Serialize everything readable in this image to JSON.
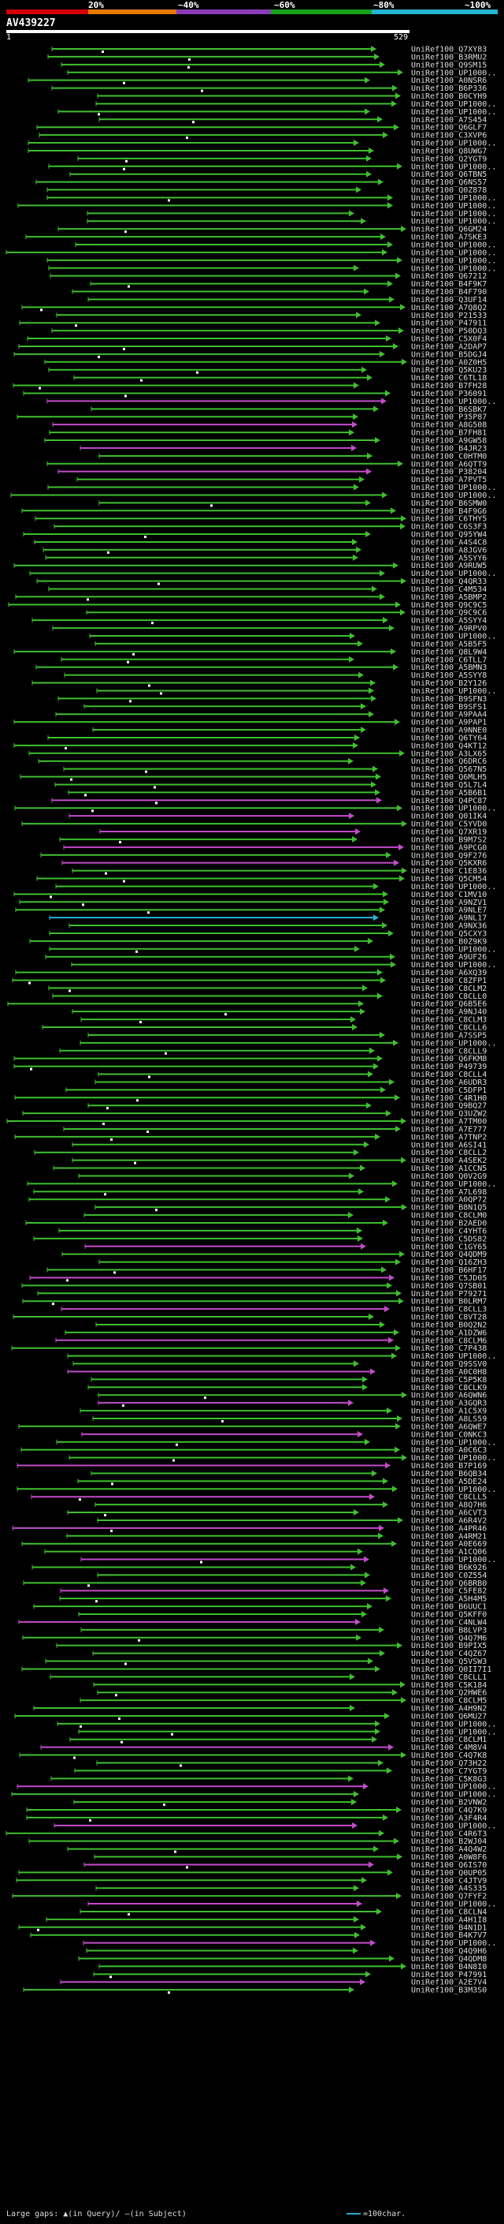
{
  "legend": {
    "labels": [
      "20%",
      "~40%",
      "~60%",
      "~80%",
      "~100%"
    ],
    "colors": [
      "#d40000",
      "#e67a00",
      "#8b3bb8",
      "#19a019",
      "#22b5d0"
    ]
  },
  "query": {
    "name": "AV439227",
    "start": "1",
    "end": "529"
  },
  "hits": [
    "UniRef100_Q7XY83",
    "UniRef100_B3RMU2",
    "UniRef100_Q9SM15",
    "UniRef100_UP1000..",
    "UniRef100_A0NSR6",
    "UniRef100_B6P336",
    "UniRef100_B0CYH9",
    "UniRef100_UP1000..",
    "UniRef100_UP1000..",
    "UniRef100_A7S454",
    "UniRef100_Q6GLF7",
    "UniRef100_C3XVP6",
    "UniRef100_UP1000..",
    "UniRef100_Q8UWG7",
    "UniRef100_Q2YGT9",
    "UniRef100_UP1000..",
    "UniRef100_Q6TBN5",
    "UniRef100_Q6NS57",
    "UniRef100_Q0Z878",
    "UniRef100_UP1000..",
    "UniRef100_UP1000..",
    "UniRef100_UP1000..",
    "UniRef100_UP1000..",
    "UniRef100_Q6GM24",
    "UniRef100_A7SKE3",
    "UniRef100_UP1000..",
    "UniRef100_UP1000..",
    "UniRef100_UP1000..",
    "UniRef100_UP1000..",
    "UniRef100_Q67212",
    "UniRef100_B4F9K7",
    "UniRef100_B4F790",
    "UniRef100_Q3UF14",
    "UniRef100_A7Q8Q2",
    "UniRef100_P21533",
    "UniRef100_P47911",
    "UniRef100_P50DQ3",
    "UniRef100_C5X0F4",
    "UniRef100_A2DAP7",
    "UniRef100_B5DGJ4",
    "UniRef100_A0Z0H5",
    "UniRef100_Q5KU23",
    "UniRef100_C6TL18",
    "UniRef100_B7FH28",
    "UniRef100_P36091",
    "UniRef100_UP1000..",
    "UniRef100_B6SBK7",
    "UniRef100_P35P87",
    "UniRef100_A8G508",
    "UniRef100_B7FH81",
    "UniRef100_A9GW58",
    "UniRef100_B4JR23",
    "UniRef100_C0HTM0",
    "UniRef100_A6QTT9",
    "UniRef100_P38204",
    "UniRef100_A7PVT5",
    "UniRef100_UP1000..",
    "UniRef100_UP1000..",
    "UniRef100_B6SMW0",
    "UniRef100_B4F9G6",
    "UniRef100_C6THY5",
    "UniRef100_C6S3F3",
    "UniRef100_Q95YW4",
    "UniRef100_A4S4C8",
    "UniRef100_A8JGV6",
    "UniRef100_A5SYY6",
    "UniRef100_A9RUW5",
    "UniRef100_UP1000..",
    "UniRef100_Q4QR33",
    "UniRef100_C4M534",
    "UniRef100_A5BMP2",
    "UniRef100_Q9C9C5",
    "UniRef100_Q9C9C6",
    "UniRef100_A5SYY4",
    "UniRef100_A9RPV0",
    "UniRef100_UP1000..",
    "UniRef100_A5B5F5",
    "UniRef100_Q8L9W4",
    "UniRef100_C6TLL7",
    "UniRef100_A5BMN3",
    "UniRef100_A5SYY8",
    "UniRef100_B2Y126",
    "UniRef100_UP1000..",
    "UniRef100_B9SFN3",
    "UniRef100_B9SFS1",
    "UniRef100_A9PAA4",
    "UniRef100_A9PAP1",
    "UniRef100_A9NNE0",
    "UniRef100_Q6TY64",
    "UniRef100_Q4KT12",
    "UniRef100_A3LX65",
    "UniRef100_Q6DRC6",
    "UniRef100_Q567N5",
    "UniRef100_Q6MLH5",
    "UniRef100_Q5L7L4",
    "UniRef100_A5B6B1",
    "UniRef100_Q4PC87",
    "UniRef100_UP1000..",
    "UniRef100_Q01IK4",
    "UniRef100_C5YVD0",
    "UniRef100_Q7XR19",
    "UniRef100_B9M7S2",
    "UniRef100_A9PCG0",
    "UniRef100_Q9F276",
    "UniRef100_Q5KXR6",
    "UniRef100_C1E836",
    "UniRef100_Q5CM54",
    "UniRef100_UP1000..",
    "UniRef100_C1MV10",
    "UniRef100_A9NZV1",
    "UniRef100_A9NLE7",
    "UniRef100_A9NL17",
    "UniRef100_A9NX36",
    "UniRef100_Q5CXY3",
    "UniRef100_B0Z9K9",
    "UniRef100_UP1000..",
    "UniRef100_A9UF26",
    "UniRef100_UP1000..",
    "UniRef100_A6XQ39",
    "UniRef100_C8ZFP1",
    "UniRef100_C8CLM2",
    "UniRef100_C8CLL0",
    "UniRef100_Q6B5E6",
    "UniRef100_A9NJ40",
    "UniRef100_C8CLM3",
    "UniRef100_C8CLL6",
    "UniRef100_A7SSP5",
    "UniRef100_UP1000..",
    "UniRef100_C8CLL9",
    "UniRef100_Q6FKM8",
    "UniRef100_P49739",
    "UniRef100_C8CLL4",
    "UniRef100_A6UDR3",
    "UniRef100_C5DFP1",
    "UniRef100_C4R1H0",
    "UniRef100_Q9BQ27",
    "UniRef100_Q3UZW2",
    "UniRef100_A7TM00",
    "UniRef100_A7E777",
    "UniRef100_A7TNP2",
    "UniRef100_A6SI41",
    "UniRef100_C8CLL2",
    "UniRef100_A4SEK2",
    "UniRef100_A1CCN5",
    "UniRef100_Q0V2G9",
    "UniRef100_UP1000..",
    "UniRef100_A7L698",
    "UniRef100_A0QP72",
    "UniRef100_B8N1Q5",
    "UniRef100_C8CLM0",
    "UniRef100_B2AED0",
    "UniRef100_C4YHT6",
    "UniRef100_C5DS82",
    "UniRef100_C1GY65",
    "UniRef100_Q4QDM9",
    "UniRef100_Q16ZH3",
    "UniRef100_B6HF17",
    "UniRef100_C5JD05",
    "UniRef100_Q7SB01",
    "UniRef100_P79271",
    "UniRef100_B0LRM7",
    "UniRef100_C8CLL3",
    "UniRef100_C8VT28",
    "UniRef100_B0Q2N2",
    "UniRef100_A1DZW6",
    "UniRef100_C8CLM6",
    "UniRef100_C7P438",
    "UniRef100_UP1000..",
    "UniRef100_Q9SSV0",
    "UniRef100_A0C0H8",
    "UniRef100_C5P5K8",
    "UniRef100_C8CLK9",
    "UniRef100_A6QWN6",
    "UniRef100_A3GQR3",
    "UniRef100_A1C5X9",
    "UniRef100_A8LS59",
    "UniRef100_A6QWE7",
    "UniRef100_C0NKC3",
    "UniRef100_UP1000..",
    "UniRef100_A0C6C3",
    "UniRef100_UP1000..",
    "UniRef100_B7P169",
    "UniRef100_B6QB34",
    "UniRef100_A5DE24",
    "UniRef100_UP1000..",
    "UniRef100_C8CLL5",
    "UniRef100_A8Q7H6",
    "UniRef100_A6CVT3",
    "UniRef100_A6R4V2",
    "UniRef100_A4PR46",
    "UniRef100_A4RM21",
    "UniRef100_A0E669",
    "UniRef100_A1CQ06",
    "UniRef100_UP1000..",
    "UniRef100_B6K926",
    "UniRef100_C0Z554",
    "UniRef100_Q6BRB0",
    "UniRef100_C5FE82",
    "UniRef100_A5H4M5",
    "UniRef100_B6UUC1",
    "UniRef100_Q5KFF0",
    "UniRef100_C4NLW4",
    "UniRef100_B8LVP3",
    "UniRef100_Q4Q7M6",
    "UniRef100_B9PIX5",
    "UniRef100_C4QZ67",
    "UniRef100_Q5VSW3",
    "UniRef100_Q0II7I1",
    "UniRef100_C8CLL1",
    "UniRef100_C5K184",
    "UniRef100_Q2HWE6",
    "UniRef100_C8CLM5",
    "UniRef100_A4H9N2",
    "UniRef100_Q6MU27",
    "UniRef100_UP1000..",
    "UniRef100_UP1000..",
    "UniRef100_C8CLM1",
    "UniRef100_C4M8V4",
    "UniRef100_C4Q7K8",
    "UniRef100_Q73H22",
    "UniRef100_C7YGT9",
    "UniRef100_C5K8G3",
    "UniRef100_UP1000..",
    "UniRef100_UP1000..",
    "UniRef100_B2VNW2",
    "UniRef100_C4Q7K9",
    "UniRef100_A3F4R4",
    "UniRef100_UP1000..",
    "UniRef100_C4R6T3",
    "UniRef100_B2WJ04",
    "UniRef100_A4Q4W2",
    "UniRef100_A0W8F6",
    "UniRef100_Q6IS70",
    "UniRef100_Q0UP05",
    "UniRef100_C4JTV9",
    "UniRef100_A4S335",
    "UniRef100_Q7FYF2",
    "UniRef100_UP1000..",
    "UniRef100_C8CLN4",
    "UniRef100_A4H1I8",
    "UniRef100_B4N1D1",
    "UniRef100_B4K7V7",
    "UniRef100_UP1000..",
    "UniRef100_Q4Q9H6",
    "UniRef100_Q4QDM8",
    "UniRef100_B4N8I0",
    "UniRef100_P47991",
    "UniRef100_A2E7V4",
    "UniRef100_B3M3S0"
  ],
  "footer": {
    "gaps_label": "Large gaps:",
    "in_query": "(in Query)/",
    "in_subject": "(in Subject)",
    "scale": "=100char."
  }
}
